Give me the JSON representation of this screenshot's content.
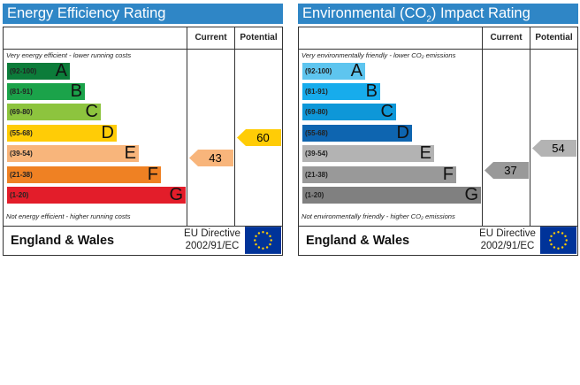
{
  "panels": [
    {
      "title": "Energy Efficiency Rating",
      "col_current": "Current",
      "col_potential": "Potential",
      "top_note": "Very energy efficient - lower running costs",
      "bottom_note": "Not energy efficient - higher running costs",
      "bands": [
        {
          "range": "(92-100)",
          "letter": "A",
          "color": "#0c7c3a"
        },
        {
          "range": "(81-91)",
          "letter": "B",
          "color": "#1ba34a"
        },
        {
          "range": "(69-80)",
          "letter": "C",
          "color": "#8dc43e"
        },
        {
          "range": "(55-68)",
          "letter": "D",
          "color": "#ffcc06"
        },
        {
          "range": "(39-54)",
          "letter": "E",
          "color": "#f8b57b"
        },
        {
          "range": "(21-38)",
          "letter": "F",
          "color": "#ef8123"
        },
        {
          "range": "(1-20)",
          "letter": "G",
          "color": "#e31d2a"
        }
      ],
      "current": {
        "value": "43",
        "band": "E",
        "color": "#f8b57b"
      },
      "potential": {
        "value": "60",
        "band": "D",
        "color": "#ffcc06"
      },
      "country": "England & Wales",
      "directive_line1": "EU Directive",
      "directive_line2": "2002/91/EC"
    },
    {
      "title_prefix": "Environmental (CO",
      "title_sub": "2",
      "title_suffix": ") Impact Rating",
      "col_current": "Current",
      "col_potential": "Potential",
      "top_note": "Very environmentally friendly - lower CO₂ emissions",
      "bottom_note": "Not environmentally friendly - higher CO₂ emissions",
      "bands": [
        {
          "range": "(92-100)",
          "letter": "A",
          "color": "#5ec5ef"
        },
        {
          "range": "(81-91)",
          "letter": "B",
          "color": "#17acec"
        },
        {
          "range": "(69-80)",
          "letter": "C",
          "color": "#0e97d8"
        },
        {
          "range": "(55-68)",
          "letter": "D",
          "color": "#0e65b0"
        },
        {
          "range": "(39-54)",
          "letter": "E",
          "color": "#b3b3b3"
        },
        {
          "range": "(21-38)",
          "letter": "F",
          "color": "#999999"
        },
        {
          "range": "(1-20)",
          "letter": "G",
          "color": "#808080"
        }
      ],
      "current": {
        "value": "37",
        "band": "F",
        "color": "#999999"
      },
      "potential": {
        "value": "54",
        "band": "E",
        "color": "#b3b3b3"
      },
      "country": "England & Wales",
      "directive_line1": "EU Directive",
      "directive_line2": "2002/91/EC"
    }
  ]
}
